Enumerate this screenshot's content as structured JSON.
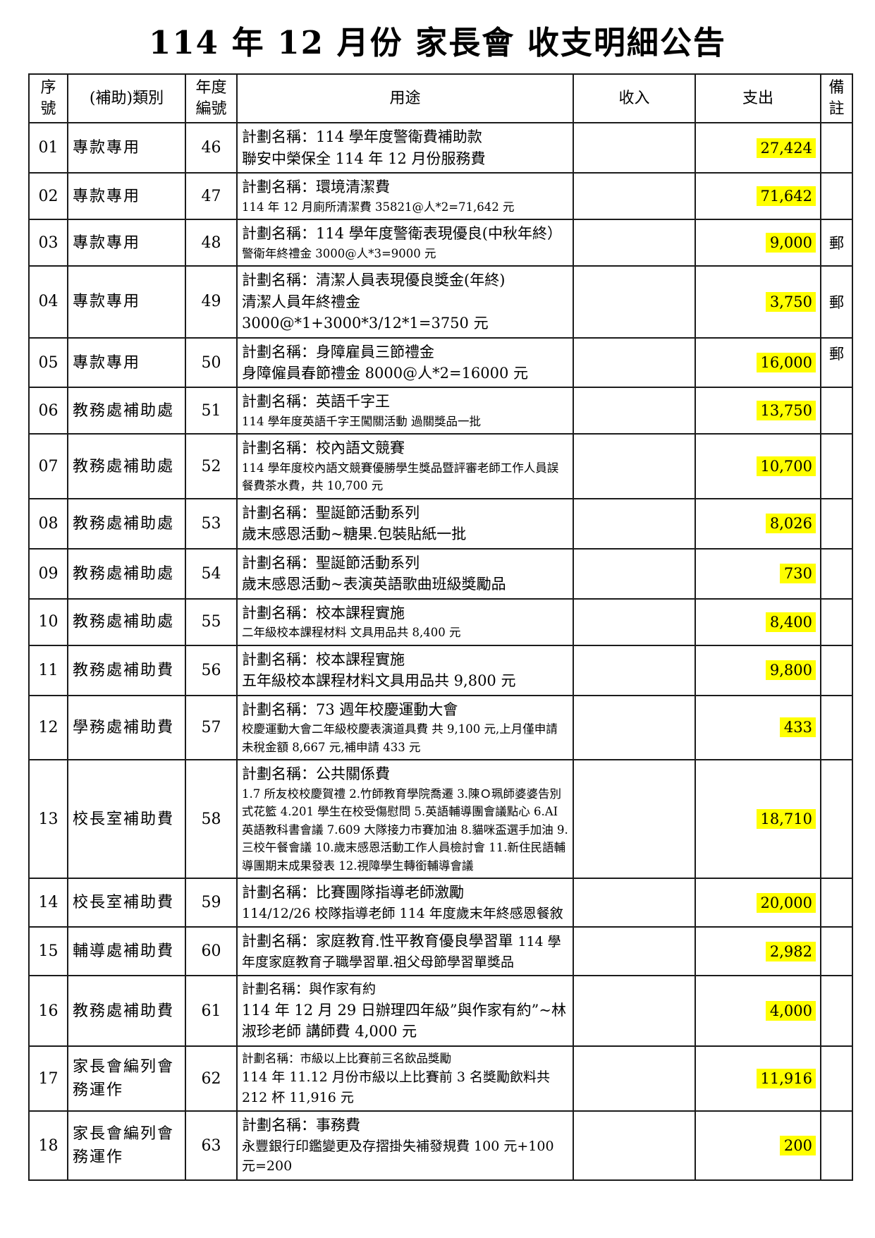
{
  "page": {
    "title": "114 年 12 月份  家長會  收支明細公告"
  },
  "table": {
    "highlight_color": "#ffff00",
    "headers": [
      {
        "id": "seq",
        "lines": [
          "序",
          "號"
        ]
      },
      {
        "id": "category",
        "lines": [
          "(補助)類別"
        ]
      },
      {
        "id": "year_no",
        "lines": [
          "年度",
          "編號"
        ]
      },
      {
        "id": "purpose",
        "lines": [
          "用途"
        ]
      },
      {
        "id": "income",
        "lines": [
          "收入"
        ]
      },
      {
        "id": "expense",
        "lines": [
          "支出"
        ]
      },
      {
        "id": "note",
        "lines": [
          "備",
          "註"
        ]
      }
    ],
    "rows": [
      {
        "seq": "01",
        "category": "專款專用",
        "year_no": "46",
        "purpose": [
          [
            {
              "t": "計劃名稱：114 學年度警衛費補助款",
              "s": "lg"
            }
          ],
          [
            {
              "t": "聯安中榮保全 114 年 12 月份服務費",
              "s": "lg"
            }
          ]
        ],
        "income": "",
        "expense": "27,424",
        "note": ""
      },
      {
        "seq": "02",
        "category": "專款專用",
        "year_no": "47",
        "purpose": [
          [
            {
              "t": "計劃名稱：環境清潔費",
              "s": "lg"
            }
          ],
          [
            {
              "t": "114 年 12 月廁所清潔費 35821@人*2=71,642 元",
              "s": "sm"
            }
          ]
        ],
        "income": "",
        "expense": "71,642",
        "note": ""
      },
      {
        "seq": "03",
        "category": "專款專用",
        "year_no": "48",
        "purpose": [
          [
            {
              "t": "計劃名稱：114 學年度警衛表現優良(中秋年終） ",
              "s": "lg"
            },
            {
              "t": "警衛年終禮金 3000@人*3=9000 元",
              "s": "sm"
            }
          ]
        ],
        "income": "",
        "expense": "9,000",
        "note": "郵"
      },
      {
        "seq": "04",
        "category": "專款專用",
        "year_no": "49",
        "purpose": [
          [
            {
              "t": "計劃名稱：清潔人員表現優良獎金(年終)",
              "s": "lg"
            }
          ],
          [
            {
              "t": "清潔人員年終禮金",
              "s": "lg"
            }
          ],
          [
            {
              "t": "3000@*1+3000*3/12*1=3750 元",
              "s": "lg"
            }
          ]
        ],
        "income": "",
        "expense": "3,750",
        "note": "郵"
      },
      {
        "seq": "05",
        "category": "專款專用",
        "year_no": "50",
        "purpose": [
          [
            {
              "t": "計劃名稱：身障雇員三節禮金",
              "s": "lg"
            }
          ],
          [
            {
              "t": "身障僱員春節禮金 8000@人*2=16000 元",
              "s": "lg"
            }
          ]
        ],
        "income": "",
        "expense": "16,000",
        "note": "郵",
        "note_pos": "top"
      },
      {
        "seq": "06",
        "category": "教務處補助處",
        "year_no": "51",
        "purpose": [
          [
            {
              "t": "計劃名稱：英語千字王",
              "s": "lg"
            }
          ],
          [
            {
              "t": "114 學年度英語千字王闖關活動 過關獎品一批",
              "s": "sm"
            }
          ]
        ],
        "income": "",
        "expense": "13,750",
        "note": ""
      },
      {
        "seq": "07",
        "category": "教務處補助處",
        "year_no": "52",
        "purpose": [
          [
            {
              "t": "計劃名稱：校內語文競賽",
              "s": "lg"
            }
          ],
          [
            {
              "t": "114 學年度校內語文競賽優勝學生獎品暨評審老師工作人員誤餐費茶水費，共 10,700 元",
              "s": "sm"
            }
          ]
        ],
        "income": "",
        "expense": "10,700",
        "note": ""
      },
      {
        "seq": "08",
        "category": "教務處補助處",
        "year_no": "53",
        "purpose": [
          [
            {
              "t": "計劃名稱：聖誕節活動系列",
              "s": "lg"
            }
          ],
          [
            {
              "t": "歲末感恩活動~糖果.包裝貼紙一批",
              "s": "lg"
            }
          ]
        ],
        "income": "",
        "expense": "8,026",
        "note": ""
      },
      {
        "seq": "09",
        "category": "教務處補助處",
        "year_no": "54",
        "purpose": [
          [
            {
              "t": "計劃名稱：聖誕節活動系列",
              "s": "lg"
            }
          ],
          [
            {
              "t": "歲末感恩活動~表演英語歌曲班級獎勵品",
              "s": "lg"
            }
          ]
        ],
        "income": "",
        "expense": "730",
        "note": ""
      },
      {
        "seq": "10",
        "category": "教務處補助處",
        "year_no": "55",
        "purpose": [
          [
            {
              "t": "計劃名稱：校本課程實施",
              "s": "lg"
            }
          ],
          [
            {
              "t": "二年級校本課程材料 文具用品共 8,400 元",
              "s": "sm"
            }
          ]
        ],
        "income": "",
        "expense": "8,400",
        "note": ""
      },
      {
        "seq": "11",
        "category": "教務處補助費",
        "year_no": "56",
        "purpose": [
          [
            {
              "t": "計劃名稱：校本課程實施",
              "s": "lg"
            }
          ],
          [
            {
              "t": "五年級校本課程材料文具用品共 9,800 元",
              "s": "lg"
            }
          ]
        ],
        "income": "",
        "expense": "9,800",
        "note": ""
      },
      {
        "seq": "12",
        "category": "學務處補助費",
        "year_no": "57",
        "purpose": [
          [
            {
              "t": "計劃名稱：73 週年校慶運動大會",
              "s": "lg"
            }
          ],
          [
            {
              "t": "校慶運動大會二年級校慶表演道具費 共 9,100 元,上月僅申請未稅金額 8,667 元,補申請 433 元",
              "s": "sm"
            }
          ]
        ],
        "income": "",
        "expense": "433",
        "note": ""
      },
      {
        "seq": "13",
        "category": "校長室補助費",
        "year_no": "58",
        "purpose": [
          [
            {
              "t": "計劃名稱：公共關係費",
              "s": "lg"
            }
          ],
          [
            {
              "t": "1.7 所友校校慶賀禮 2.竹師教育學院喬遷 3.陳Ｏ珮師婆婆告別式花籃 4.201 學生在校受傷慰問 5.英語輔導團會議點心 6.AI 英語教科書會議 7.609 大隊接力市賽加油 8.貓咪盃選手加油 9.三校午餐會議 10.歲末感恩活動工作人員檢討會 11.新住民語輔導團期末成果發表 12.視障學生轉銜輔導會議",
              "s": "sm"
            }
          ]
        ],
        "income": "",
        "expense": "18,710",
        "note": ""
      },
      {
        "seq": "14",
        "category": "校長室補助費",
        "year_no": "59",
        "purpose": [
          [
            {
              "t": "計劃名稱：比賽團隊指導老師激勵",
              "s": "lg"
            }
          ],
          [
            {
              "t": "114/12/26 校隊指導老師 114 年度歲末年終感恩餐敘",
              "s": "md"
            }
          ]
        ],
        "income": "",
        "expense": "20,000",
        "note": ""
      },
      {
        "seq": "15",
        "category": "輔導處補助費",
        "year_no": "60",
        "purpose": [
          [
            {
              "t": "計劃名稱：家庭教育.性平教育優良學習單 ",
              "s": "lg"
            },
            {
              "t": "114 學年度家庭教育子職學習單.祖父母節學習單獎品",
              "s": "md"
            }
          ]
        ],
        "income": "",
        "expense": "2,982",
        "note": ""
      },
      {
        "seq": "16",
        "category": "教務處補助費",
        "year_no": "61",
        "purpose": [
          [
            {
              "t": "計劃名稱：與作家有約",
              "s": "md"
            }
          ],
          [
            {
              "t": "114 年 12 月 29 日辦理四年級”與作家有約”~林淑珍老師 講師費 4,000 元",
              "s": "lg"
            }
          ]
        ],
        "income": "",
        "expense": "4,000",
        "note": ""
      },
      {
        "seq": "17",
        "category": "家長會編列會務運作",
        "year_no": "62",
        "purpose": [
          [
            {
              "t": "計劃名稱：市級以上比賽前三名飲品獎勵",
              "s": "sm"
            }
          ],
          [
            {
              "t": "114 年 11.12 月份市級以上比賽前 3 名獎勵飲料共 212 杯 11,916 元",
              "s": "md"
            }
          ]
        ],
        "income": "",
        "expense": "11,916",
        "note": ""
      },
      {
        "seq": "18",
        "category": "家長會編列會務運作",
        "year_no": "63",
        "purpose": [
          [
            {
              "t": "計劃名稱：事務費",
              "s": "lg"
            }
          ],
          [
            {
              "t": "永豐銀行印鑑變更及存摺掛失補發規費 100 元+100 元=200",
              "s": "md"
            }
          ]
        ],
        "income": "",
        "expense": "200",
        "note": ""
      }
    ]
  }
}
